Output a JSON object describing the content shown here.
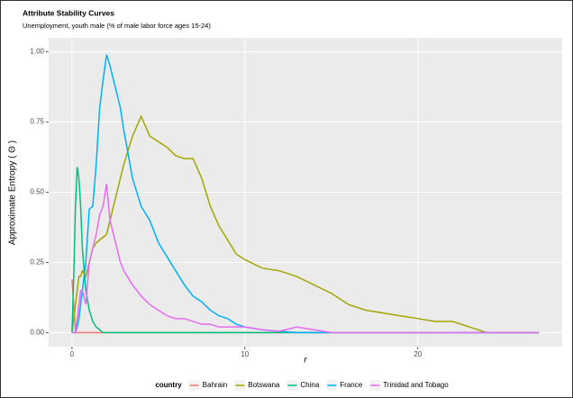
{
  "chart_data": {
    "type": "line",
    "title": "Attribute Stability Curves",
    "subtitle": "Unemployment, youth male (% of male labor force ages 15-24)",
    "x_label": "r",
    "y_label": "Approximate Entropy ( Θ )",
    "legend_title": "country",
    "legend": "bottom",
    "grid": true,
    "xlim": [
      -1.35,
      28.35
    ],
    "xticks": [
      0,
      10,
      20
    ],
    "ylim": [
      -0.05,
      1.05
    ],
    "yticks": [
      {
        "value": 0,
        "label": "0.00"
      },
      {
        "value": 0.25,
        "label": "0.25"
      },
      {
        "value": 0.5,
        "label": "0.50"
      },
      {
        "value": 0.75,
        "label": "0.75"
      },
      {
        "value": 1,
        "label": "1.00"
      }
    ],
    "x": [
      0,
      0.1,
      0.2,
      0.3,
      0.4,
      0.5,
      0.6,
      0.8,
      1,
      1.2,
      1.4,
      1.6,
      1.8,
      2,
      2.2,
      2.4,
      2.6,
      2.8,
      3,
      3.5,
      4,
      4.5,
      5,
      5.5,
      6,
      6.5,
      7,
      7.5,
      8,
      8.5,
      9,
      9.5,
      10,
      11,
      12,
      13,
      14,
      15,
      16,
      17,
      18,
      19,
      20,
      21,
      22,
      23,
      24,
      25,
      26,
      27
    ],
    "series": [
      {
        "name": "Bahrain",
        "color": "#F8766D",
        "values": [
          0.19,
          0.1,
          0,
          0,
          0,
          0,
          0,
          0,
          0,
          0,
          0,
          0,
          0,
          0,
          0,
          0,
          0,
          0,
          0,
          0,
          0,
          0,
          0,
          0,
          0,
          0,
          0,
          0,
          0,
          0,
          0,
          0,
          0,
          0,
          0,
          0,
          0,
          0,
          0,
          0,
          0,
          0,
          0,
          0,
          0,
          0,
          0,
          0,
          0,
          0
        ]
      },
      {
        "name": "Botswana",
        "color": "#A3A500",
        "values": [
          0,
          0.05,
          0.1,
          0.15,
          0.2,
          0.2,
          0.22,
          0.2,
          0.25,
          0.3,
          0.32,
          0.33,
          0.34,
          0.35,
          0.4,
          0.45,
          0.5,
          0.55,
          0.6,
          0.7,
          0.77,
          0.7,
          0.68,
          0.66,
          0.63,
          0.62,
          0.62,
          0.55,
          0.45,
          0.38,
          0.33,
          0.28,
          0.26,
          0.23,
          0.22,
          0.2,
          0.17,
          0.14,
          0.1,
          0.08,
          0.07,
          0.06,
          0.05,
          0.04,
          0.04,
          0.02,
          0,
          0,
          0,
          0
        ]
      },
      {
        "name": "China",
        "color": "#00BF7D",
        "values": [
          0,
          0.2,
          0.45,
          0.59,
          0.55,
          0.45,
          0.3,
          0.15,
          0.08,
          0.04,
          0.02,
          0.01,
          0,
          0,
          0,
          0,
          0,
          0,
          0,
          0,
          0,
          0,
          0,
          0,
          0,
          0,
          0,
          0,
          0,
          0,
          0,
          0,
          0,
          0,
          0,
          0,
          0,
          0,
          0,
          0,
          0,
          0,
          0,
          0,
          0,
          0,
          0,
          0,
          0,
          0
        ]
      },
      {
        "name": "France",
        "color": "#00B0F6",
        "values": [
          0,
          0,
          0,
          0.02,
          0.05,
          0.1,
          0.15,
          0.25,
          0.44,
          0.45,
          0.6,
          0.8,
          0.9,
          0.99,
          0.95,
          0.9,
          0.85,
          0.8,
          0.72,
          0.55,
          0.45,
          0.4,
          0.32,
          0.27,
          0.22,
          0.17,
          0.13,
          0.11,
          0.08,
          0.06,
          0.05,
          0.03,
          0.02,
          0.01,
          0.005,
          0,
          0,
          0,
          0,
          0,
          0,
          0,
          0,
          0,
          0,
          0,
          0,
          0,
          0,
          0
        ]
      },
      {
        "name": "Trinidad and Tobago",
        "color": "#E76BF3",
        "values": [
          0,
          0,
          0,
          0.05,
          0.1,
          0.15,
          0.15,
          0.1,
          0.25,
          0.3,
          0.35,
          0.42,
          0.45,
          0.53,
          0.4,
          0.35,
          0.3,
          0.25,
          0.22,
          0.17,
          0.13,
          0.1,
          0.08,
          0.06,
          0.05,
          0.05,
          0.04,
          0.03,
          0.03,
          0.02,
          0.02,
          0.02,
          0.02,
          0.01,
          0.005,
          0.02,
          0.01,
          0,
          0,
          0,
          0,
          0,
          0,
          0,
          0,
          0,
          0,
          0,
          0,
          0
        ]
      }
    ]
  }
}
